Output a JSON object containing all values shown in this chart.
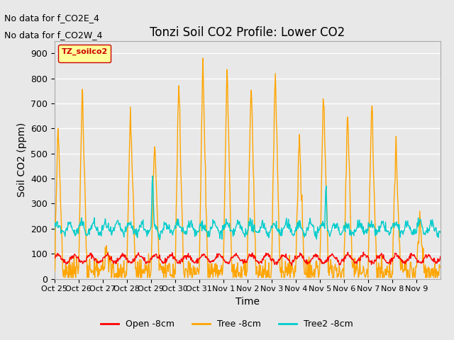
{
  "title": "Tonzi Soil CO2 Profile: Lower CO2",
  "xlabel": "Time",
  "ylabel": "Soil CO2 (ppm)",
  "ylim": [
    0,
    950
  ],
  "yticks": [
    0,
    100,
    200,
    300,
    400,
    500,
    600,
    700,
    800,
    900
  ],
  "legend_label_box": "TZ_soilco2",
  "legend_entries": [
    "Open -8cm",
    "Tree -8cm",
    "Tree2 -8cm"
  ],
  "legend_colors": [
    "#ff0000",
    "#ffa500",
    "#00cccc"
  ],
  "no_data_text": [
    "No data for f_CO2E_4",
    "No data for f_CO2W_4"
  ],
  "bg_color": "#e8e8e8",
  "plot_bg_color": "#e8e8e8",
  "grid_color": "#ffffff",
  "x_tick_labels": [
    "Oct 25",
    "Oct 26",
    "Oct 27",
    "Oct 28",
    "Oct 29",
    "Oct 30",
    "Oct 31",
    "Nov 1",
    "Nov 2",
    "Nov 3",
    "Nov 4",
    "Nov 5",
    "Nov 6",
    "Nov 7",
    "Nov 8",
    "Nov 9"
  ],
  "seed": 42
}
